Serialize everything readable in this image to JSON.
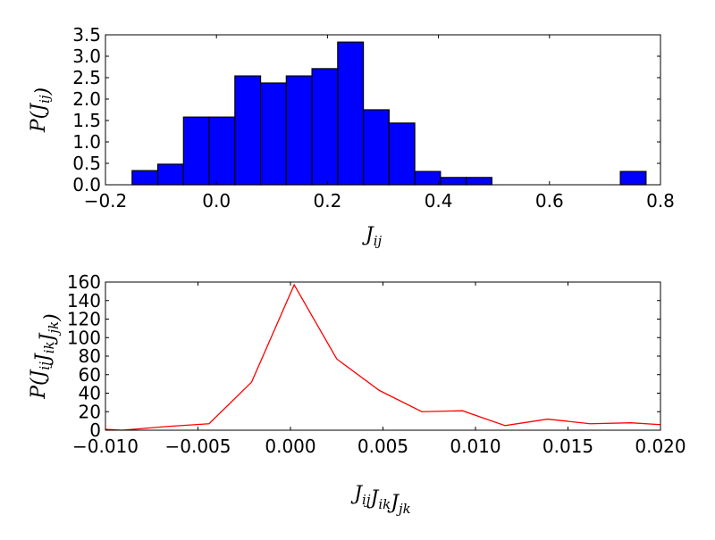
{
  "chart_data": [
    {
      "type": "bar",
      "title": "",
      "xlabel": "J_ij",
      "ylabel": "P(J_ij)",
      "xlim": [
        -0.2,
        0.8
      ],
      "ylim": [
        0,
        3.5
      ],
      "xticks": [
        "−0.2",
        "0.0",
        "0.2",
        "0.4",
        "0.6",
        "0.8"
      ],
      "yticks": [
        "0.0",
        "0.5",
        "1.0",
        "1.5",
        "2.0",
        "2.5",
        "3.0",
        "3.5"
      ],
      "bin_start": -0.152,
      "bin_width": 0.0463,
      "values": [
        0.33,
        0.48,
        1.58,
        1.58,
        2.54,
        2.375,
        2.54,
        2.71,
        3.33,
        1.75,
        1.44,
        0.31,
        0.17,
        0.17,
        0,
        0,
        0,
        0,
        0,
        0.31
      ],
      "color": "#0000ff",
      "grid": false
    },
    {
      "type": "line",
      "title": "",
      "xlabel": "J_ij J_ik J_jk",
      "ylabel": "P(J_ij J_ik J_jk)",
      "xlim": [
        -0.01,
        0.02
      ],
      "ylim": [
        0,
        160
      ],
      "xticks": [
        "−0.010",
        "−0.005",
        "0.000",
        "0.005",
        "0.010",
        "0.015",
        "0.020"
      ],
      "yticks": [
        "0",
        "20",
        "40",
        "60",
        "80",
        "100",
        "120",
        "140",
        "160"
      ],
      "x": [
        -0.01,
        -0.0091,
        -0.0067,
        -0.0044,
        -0.0021,
        0.0002,
        0.0025,
        0.0048,
        0.0071,
        0.0093,
        0.0116,
        0.0139,
        0.0162,
        0.0184,
        0.02
      ],
      "y": [
        1,
        0,
        4,
        7,
        52,
        157,
        77,
        43,
        20,
        21,
        5,
        12,
        7,
        8,
        6
      ],
      "color": "#ff0000",
      "grid": false
    }
  ]
}
